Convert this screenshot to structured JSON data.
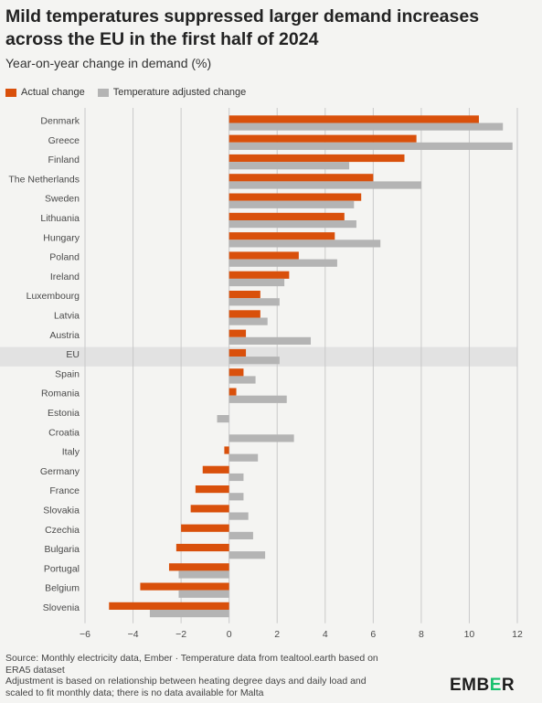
{
  "title_line1": "Mild temperatures suppressed larger demand increases",
  "title_line2": "across the EU in the first half of 2024",
  "subtitle": "Year-on-year change in demand (%)",
  "legend": {
    "actual": "Actual change",
    "adjusted": "Temperature adjusted change"
  },
  "colors": {
    "actual": "#d9500b",
    "adjusted": "#b4b4b4",
    "highlight": "#e2e2e2",
    "grid": "#c9c9c9",
    "logo_accent": "#18c06d"
  },
  "source": {
    "line1": "Source: Monthly electricity data, Ember · Temperature data from tealtool.earth based on",
    "line2": "ERA5 dataset",
    "line3": "Adjustment is based on relationship between heating degree days and daily load and",
    "line4": "scaled to fit monthly data; there is no data available for Malta"
  },
  "logo": {
    "part1": "EMB",
    "accent": "E",
    "part2": "R"
  },
  "chart_data": {
    "type": "bar",
    "orientation": "horizontal",
    "title": "Mild temperatures suppressed larger demand increases across the EU in the first half of 2024",
    "subtitle": "Year-on-year change in demand (%)",
    "xlabel": "",
    "ylabel": "",
    "xlim": [
      -6,
      12
    ],
    "xticks": [
      -6,
      -4,
      -2,
      0,
      2,
      4,
      6,
      8,
      10,
      12
    ],
    "grid": "vertical",
    "legend_position": "top-left",
    "highlighted_category": "EU",
    "categories": [
      "Denmark",
      "Greece",
      "Finland",
      "The Netherlands",
      "Sweden",
      "Lithuania",
      "Hungary",
      "Poland",
      "Ireland",
      "Luxembourg",
      "Latvia",
      "Austria",
      "EU",
      "Spain",
      "Romania",
      "Estonia",
      "Croatia",
      "Italy",
      "Germany",
      "France",
      "Slovakia",
      "Czechia",
      "Bulgaria",
      "Portugal",
      "Belgium",
      "Slovenia"
    ],
    "series": [
      {
        "name": "Actual change",
        "values": [
          10.4,
          7.8,
          7.3,
          6.0,
          5.5,
          4.8,
          4.4,
          2.9,
          2.5,
          1.3,
          1.3,
          0.7,
          0.7,
          0.6,
          0.3,
          0.0,
          0.0,
          -0.2,
          -1.1,
          -1.4,
          -1.6,
          -2.0,
          -2.2,
          -2.5,
          -3.7,
          -5.0
        ]
      },
      {
        "name": "Temperature adjusted change",
        "values": [
          11.4,
          11.8,
          5.0,
          8.0,
          5.2,
          5.3,
          6.3,
          4.5,
          2.3,
          2.1,
          1.6,
          3.4,
          2.1,
          1.1,
          2.4,
          -0.5,
          2.7,
          1.2,
          0.6,
          0.6,
          0.8,
          1.0,
          1.5,
          -2.1,
          -2.1,
          -3.3
        ]
      }
    ]
  }
}
